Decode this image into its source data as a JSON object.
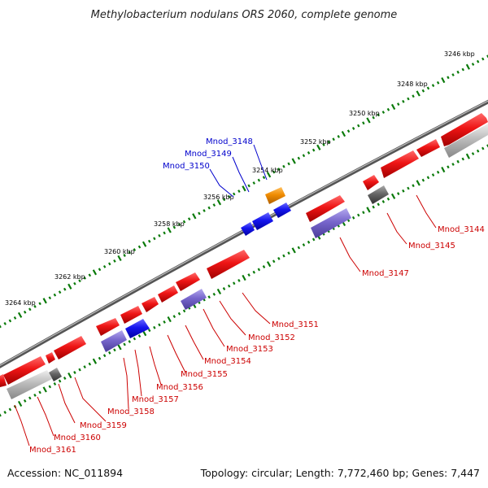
{
  "title": "Methylobacterium nodulans ORS 2060, complete genome",
  "footer": {
    "accession": "Accession: NC_011894",
    "summary": "Topology: circular; Length: 7,772,460 bp; Genes: 7,447"
  },
  "ruler_labels": [
    "3246 kbp",
    "3248 kbp",
    "3250 kbp",
    "3252 kbp",
    "3254 kbp",
    "3256 kbp",
    "3258 kbp",
    "3260 kbp",
    "3262 kbp",
    "3264 kbp"
  ],
  "gene_labels_red": [
    "Mnod_3144",
    "Mnod_3145",
    "Mnod_3147",
    "Mnod_3151",
    "Mnod_3152",
    "Mnod_3153",
    "Mnod_3154",
    "Mnod_3155",
    "Mnod_3156",
    "Mnod_3157",
    "Mnod_3158",
    "Mnod_3159",
    "Mnod_3160",
    "Mnod_3161"
  ],
  "gene_labels_blue": [
    "Mnod_3148",
    "Mnod_3149",
    "Mnod_3150"
  ],
  "colors": {
    "forward_gene": "#e01010",
    "reverse_gene": "#e01010",
    "highlight_blue": "#1010dd",
    "highlight_orange": "#f08c00",
    "rna_gray": "#666666",
    "pseudo_lavender": "#7766cc",
    "light_gray": "#bbbbbb",
    "backbone": "#777777",
    "tick_green": "#0a7a0a"
  }
}
